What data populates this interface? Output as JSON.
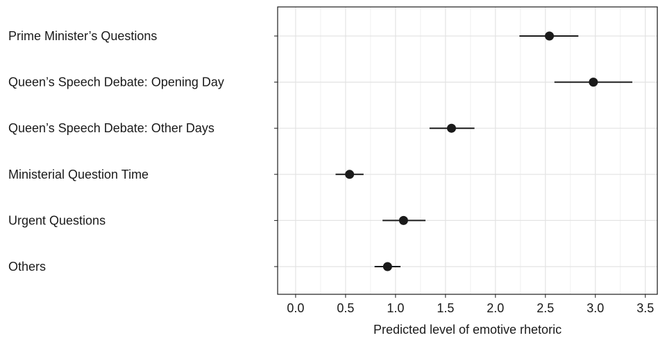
{
  "chart_data": {
    "type": "scatter",
    "subtype": "dot-and-whisker",
    "title": "",
    "xlabel": "Predicted level of emotive rhetoric",
    "ylabel": "",
    "xlim": [
      -0.18,
      3.62
    ],
    "x_ticks": [
      0.0,
      0.5,
      1.0,
      1.5,
      2.0,
      2.5,
      3.0,
      3.5
    ],
    "x_tick_labels": [
      "0.0",
      "0.5",
      "1.0",
      "1.5",
      "2.0",
      "2.5",
      "3.0",
      "3.5"
    ],
    "grid": true,
    "legend": "none",
    "categories": [
      "Prime Minister’s Questions",
      "Queen’s Speech Debate: Opening Day",
      "Queen’s Speech Debate: Other Days",
      "Ministerial Question Time",
      "Urgent Questions",
      "Others"
    ],
    "series": [
      {
        "estimates": [
          2.54,
          2.98,
          1.56,
          0.54,
          1.08,
          0.92
        ],
        "lower": [
          2.24,
          2.59,
          1.34,
          0.4,
          0.87,
          0.79
        ],
        "upper": [
          2.83,
          3.37,
          1.79,
          0.68,
          1.3,
          1.05
        ]
      }
    ],
    "colors": {
      "point": "#1a1a1a",
      "grid_major": "#e3e3e3",
      "grid_minor": "#f0f0f0",
      "axis": "#1a1a1a"
    }
  }
}
